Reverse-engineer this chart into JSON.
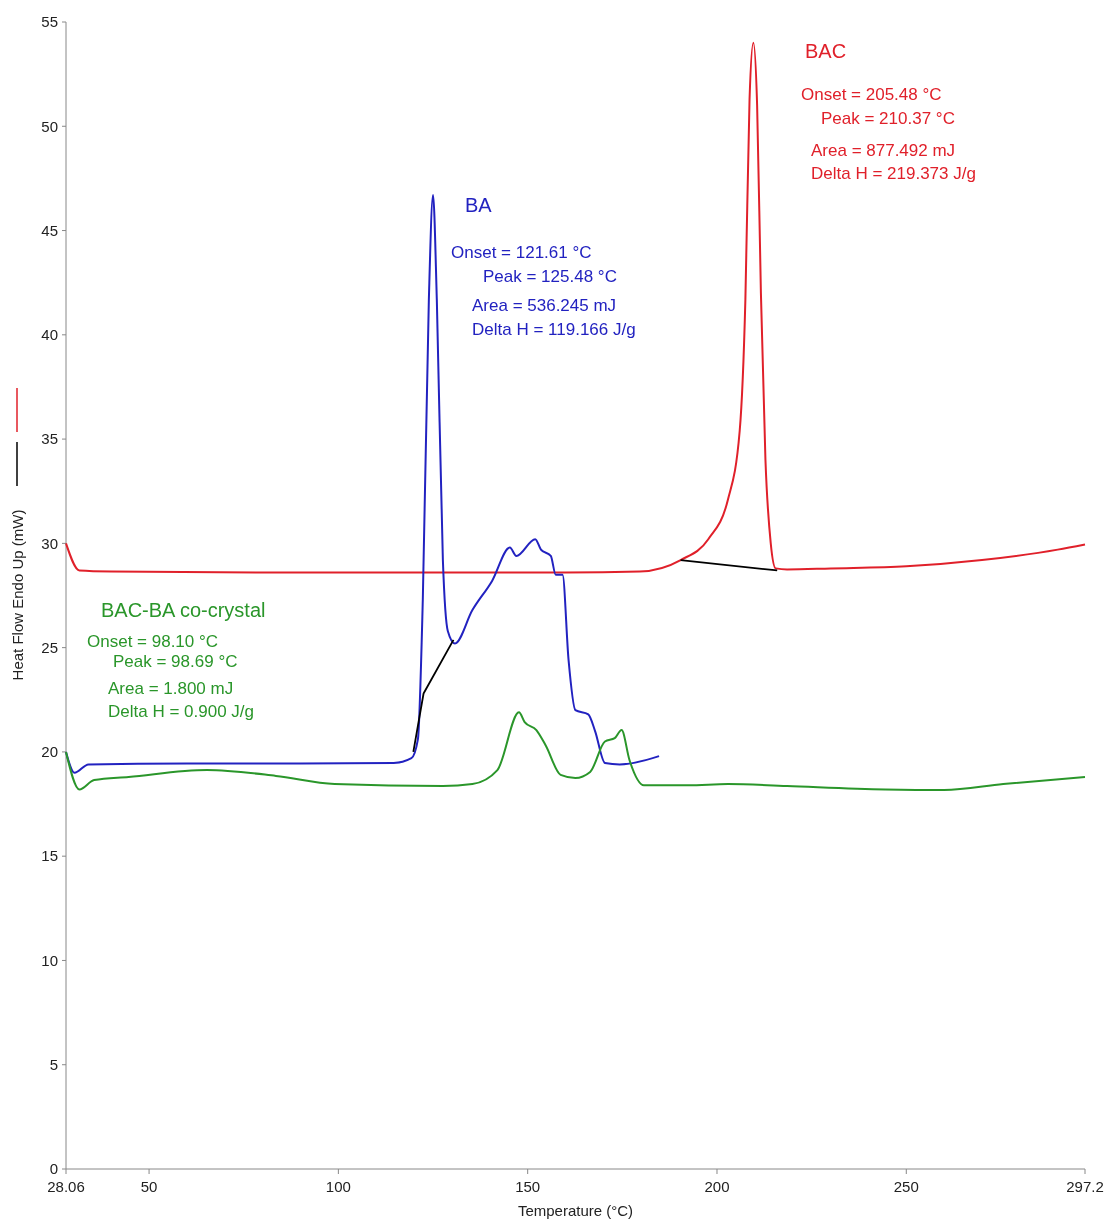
{
  "chart_data": {
    "type": "line",
    "xlabel": "Temperature (°C)",
    "ylabel": "Heat Flow Endo Up (mW)",
    "xlim": [
      28.06,
      297.2
    ],
    "ylim": [
      0,
      55
    ],
    "xticks": [
      28.06,
      50,
      100,
      150,
      200,
      250,
      297.2
    ],
    "yticks": [
      0,
      5,
      10,
      15,
      20,
      25,
      30,
      35,
      40,
      45,
      50,
      55
    ],
    "series": [
      {
        "name": "BAC",
        "color": "#e0202a",
        "x": [
          28.06,
          31.6,
          40,
          80,
          120,
          160,
          179.6,
          190.4,
          197.7,
          202.9,
          206,
          207.5,
          208.6,
          209.6,
          210.6,
          211.6,
          212.8,
          214.2,
          215.5,
          218.5,
          230,
          250,
          270,
          290,
          297.2
        ],
        "values": [
          30.0,
          28.7,
          28.65,
          28.6,
          28.6,
          28.6,
          28.65,
          29.2,
          30.2,
          32.1,
          35.4,
          41.7,
          51.3,
          54.0,
          51.0,
          42.0,
          34.0,
          30.0,
          28.8,
          28.75,
          28.8,
          28.9,
          29.2,
          29.7,
          29.95
        ]
      },
      {
        "name": "BA",
        "color": "#2222c0",
        "x": [
          28.06,
          30.3,
          34,
          60,
          90,
          114.6,
          119.3,
          121,
          122.3,
          123.9,
          125,
          126,
          127.6,
          128.9,
          130.8,
          135.4,
          140.6,
          145.3,
          147,
          152,
          153.5,
          156.1,
          157.4,
          159.2,
          160.8,
          162.6,
          166,
          167.8,
          170.4,
          174.3,
          184.7
        ],
        "values": [
          20.0,
          19.0,
          19.4,
          19.45,
          19.45,
          19.47,
          19.7,
          20.6,
          27.3,
          41.7,
          46.7,
          41.7,
          29.2,
          25.8,
          25.2,
          26.8,
          28.2,
          29.8,
          29.4,
          30.2,
          29.7,
          29.4,
          28.5,
          28.5,
          24.4,
          22.0,
          21.8,
          21.0,
          19.47,
          19.4,
          19.8
        ]
      },
      {
        "name": "BAC-BA co-crystal",
        "color": "#2a962a",
        "x": [
          28.06,
          31.6,
          35.5,
          44.6,
          65.3,
          83.5,
          99,
          127.6,
          135.4,
          142,
          147.7,
          149.2,
          152.3,
          154.8,
          158.7,
          162.6,
          166.5,
          170.4,
          173,
          174.8,
          176.9,
          180.7,
          192.4,
          202.9,
          218.5,
          244.4,
          260,
          275.6,
          297.2
        ],
        "values": [
          20.0,
          18.2,
          18.65,
          18.8,
          19.13,
          18.85,
          18.46,
          18.36,
          18.46,
          19.13,
          21.9,
          21.43,
          21.05,
          20.3,
          18.9,
          18.75,
          19.04,
          20.5,
          20.66,
          21.05,
          19.6,
          18.4,
          18.4,
          18.46,
          18.36,
          18.2,
          18.17,
          18.46,
          18.8
        ]
      },
      {
        "color": "#000000",
        "x": [
          119.8,
          122.5,
          130.4
        ],
        "values": [
          20.0,
          22.8,
          25.37
        ]
      },
      {
        "color": "#000000",
        "x": [
          190.4,
          215.9
        ],
        "values": [
          29.2,
          28.7
        ]
      }
    ],
    "annotations": [
      "Onset = 205.48 °C",
      "Peak = 210.37 °C",
      "Area = 877.492 mJ",
      "Delta H = 219.373 J/g",
      "Onset = 121.61 °C",
      "Peak = 125.48 °C",
      "Area = 536.245 mJ",
      "Delta H = 119.166 J/g",
      "Onset = 98.10 °C",
      "Peak = 98.69 °C",
      "Area = 1.800 mJ",
      "Delta H = 0.900 J/g"
    ]
  }
}
